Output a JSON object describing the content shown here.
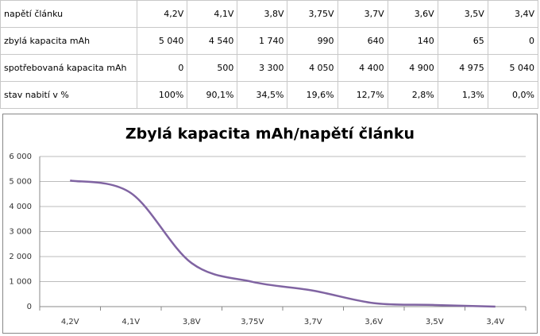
{
  "table": {
    "rows": [
      [
        "napětí článku",
        "4,2V",
        "4,1V",
        "3,8V",
        "3,75V",
        "3,7V",
        "3,6V",
        "3,5V",
        "3,4V"
      ],
      [
        "zbylá kapacita mAh",
        "5 040",
        "4 540",
        "1 740",
        "990",
        "640",
        "140",
        "65",
        "0"
      ],
      [
        "spotřebovaná kapacita mAh",
        "0",
        "500",
        "3 300",
        "4 050",
        "4 400",
        "4 900",
        "4 975",
        "5 040"
      ],
      [
        "stav nabití v %",
        "100%",
        "90,1%",
        "34,5%",
        "19,6%",
        "12,7%",
        "2,8%",
        "1,3%",
        "0,0%"
      ]
    ]
  },
  "chart_data": {
    "type": "line",
    "title": "Zbylá kapacita mAh/napětí článku",
    "categories": [
      "4,2V",
      "4,1V",
      "3,8V",
      "3,75V",
      "3,7V",
      "3,6V",
      "3,5V",
      "3,4V"
    ],
    "series": [
      {
        "name": "zbylá kapacita mAh",
        "color": "#8064a2",
        "values": [
          5040,
          4540,
          1740,
          990,
          640,
          140,
          65,
          0
        ]
      }
    ],
    "ylim": [
      0,
      6000
    ],
    "yticks": [
      0,
      {
        "value": 1000,
        "label": "1 000"
      },
      {
        "value": 2000,
        "label": "2 000"
      },
      {
        "value": 3000,
        "label": "3 000"
      },
      {
        "value": 4000,
        "label": "4 000"
      },
      {
        "value": 5000,
        "label": "5 000"
      },
      {
        "value": 6000,
        "label": "6 000"
      }
    ],
    "grid": true
  }
}
